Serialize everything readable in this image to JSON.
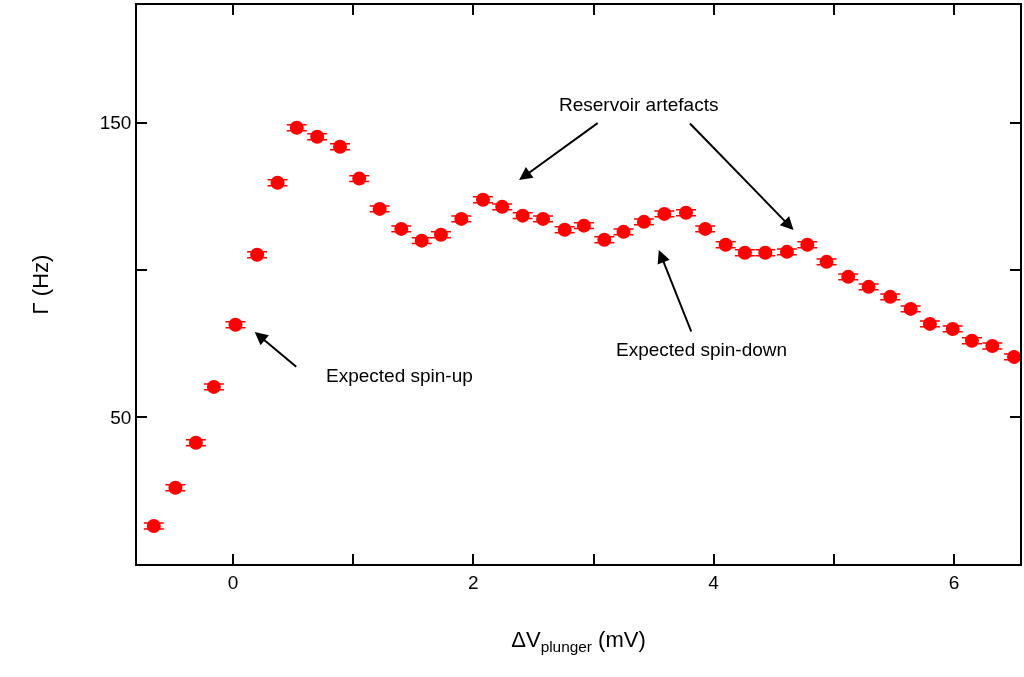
{
  "chart_data": {
    "type": "scatter",
    "xlabel": "ΔV$_{plunger}$ (mV)",
    "ylabel": "Γ (Hz)",
    "x": [
      -0.66,
      -0.48,
      -0.31,
      -0.16,
      0.02,
      0.2,
      0.37,
      0.53,
      0.7,
      0.89,
      1.05,
      1.22,
      1.4,
      1.57,
      1.73,
      1.9,
      2.08,
      2.24,
      2.41,
      2.58,
      2.76,
      2.92,
      3.09,
      3.25,
      3.42,
      3.59,
      3.77,
      3.93,
      4.1,
      4.26,
      4.43,
      4.61,
      4.78,
      4.94,
      5.12,
      5.29,
      5.47,
      5.64,
      5.8,
      5.99,
      6.15,
      6.32,
      6.5
    ],
    "series": [
      {
        "color": "#ff0000",
        "values": [
          12.9,
          25.9,
          41.2,
          60.2,
          81.3,
          105.1,
          129.6,
          148.3,
          145.2,
          141.8,
          131.0,
          120.7,
          113.9,
          109.9,
          111.9,
          117.3,
          123.8,
          121.4,
          118.4,
          117.3,
          113.6,
          115.0,
          110.2,
          112.9,
          116.3,
          119.0,
          119.4,
          113.9,
          108.5,
          105.8,
          105.8,
          106.1,
          108.5,
          102.7,
          97.6,
          94.2,
          90.8,
          86.7,
          81.6,
          79.9,
          75.9,
          74.1,
          70.4
        ],
        "errors": [
          1,
          1,
          1,
          1,
          1,
          1,
          1,
          1,
          1,
          1,
          1,
          1,
          1,
          1,
          1,
          1,
          1,
          1,
          1,
          1,
          1,
          1,
          1,
          1,
          1,
          1,
          1,
          1,
          1,
          1,
          1,
          1,
          1,
          1,
          1,
          1,
          1,
          1,
          1,
          1,
          1,
          1,
          1
        ]
      }
    ],
    "xlim": [
      -0.8,
      6.55
    ],
    "ylim": [
      0,
      190
    ],
    "xticks": [
      0,
      {
        "value": 1,
        "label": null
      },
      2,
      {
        "value": 3,
        "label": null
      },
      4,
      {
        "value": 5,
        "label": null
      },
      6
    ],
    "yticks": [
      50,
      {
        "value": 100,
        "label": null
      },
      150
    ],
    "marker": "circle",
    "annotations": [
      "Reservoir artefacts",
      "Expected spin-up",
      "Expected spin-down"
    ]
  }
}
